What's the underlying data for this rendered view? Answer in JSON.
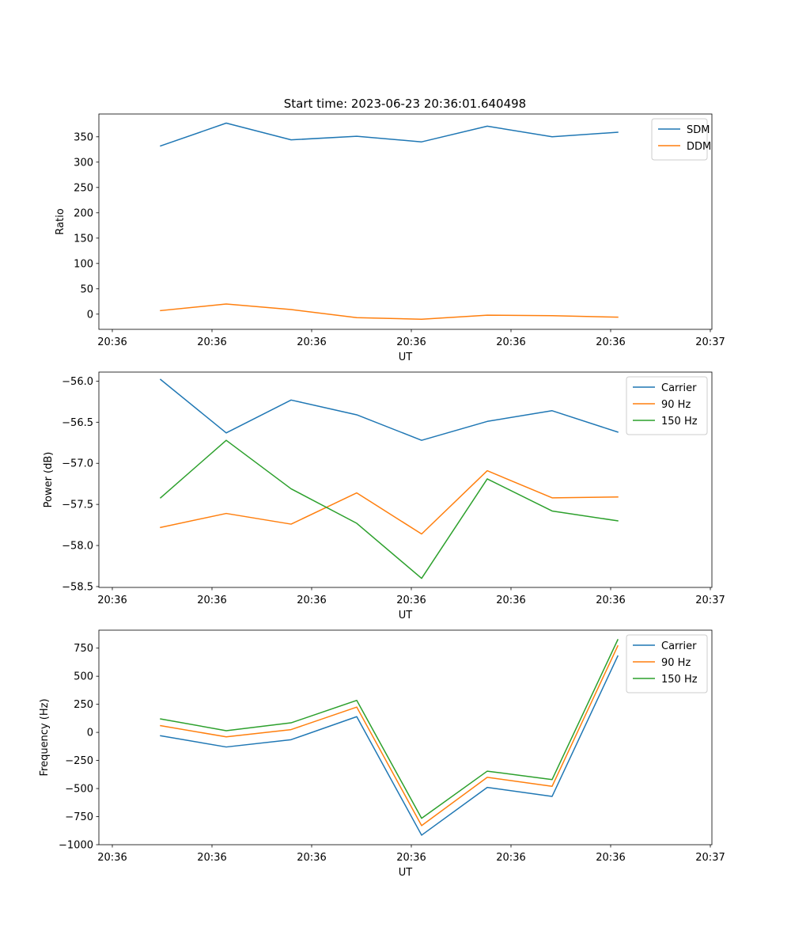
{
  "figure_title": "Start time: 2023-06-23 20:36:01.640498",
  "chart_data": [
    {
      "type": "line",
      "title": "Start time: 2023-06-23 20:36:01.640498",
      "xlabel": "UT",
      "ylabel": "Ratio",
      "x_tick_labels": [
        "20:36",
        "20:36",
        "20:36",
        "20:36",
        "20:36",
        "20:36",
        "20:37"
      ],
      "ylim": [
        -30,
        395
      ],
      "yticks": [
        0,
        50,
        100,
        150,
        200,
        250,
        300,
        350
      ],
      "legend_position": "upper-right",
      "series": [
        {
          "name": "SDM",
          "color": "#1f77b4",
          "values": [
            332,
            377,
            344,
            351,
            340,
            371,
            350,
            359
          ]
        },
        {
          "name": "DDM",
          "color": "#ff7f0e",
          "values": [
            7,
            20,
            9,
            -7,
            -10,
            -2,
            -3,
            -6
          ]
        }
      ]
    },
    {
      "type": "line",
      "xlabel": "UT",
      "ylabel": "Power (dB)",
      "x_tick_labels": [
        "20:36",
        "20:36",
        "20:36",
        "20:36",
        "20:36",
        "20:36",
        "20:37"
      ],
      "ylim": [
        -58.51,
        -55.89
      ],
      "yticks": [
        -58.5,
        -58.0,
        -57.5,
        -57.0,
        -56.5,
        -56.0
      ],
      "legend_position": "upper-right",
      "series": [
        {
          "name": "Carrier",
          "color": "#1f77b4",
          "values": [
            -55.98,
            -56.63,
            -56.23,
            -56.41,
            -56.72,
            -56.49,
            -56.36,
            -56.62
          ]
        },
        {
          "name": "90 Hz",
          "color": "#ff7f0e",
          "values": [
            -57.78,
            -57.61,
            -57.74,
            -57.36,
            -57.86,
            -57.09,
            -57.42,
            -57.41
          ]
        },
        {
          "name": "150 Hz",
          "color": "#2ca02c",
          "values": [
            -57.42,
            -56.72,
            -57.31,
            -57.73,
            -58.4,
            -57.19,
            -57.58,
            -57.7
          ]
        }
      ]
    },
    {
      "type": "line",
      "xlabel": "UT",
      "ylabel": "Frequency (Hz)",
      "x_tick_labels": [
        "20:36",
        "20:36",
        "20:36",
        "20:36",
        "20:36",
        "20:36",
        "20:37"
      ],
      "ylim": [
        -1000,
        910
      ],
      "yticks": [
        -1000,
        -750,
        -500,
        -250,
        0,
        250,
        500,
        750
      ],
      "legend_position": "upper-right",
      "series": [
        {
          "name": "Carrier",
          "color": "#1f77b4",
          "values": [
            -30,
            -130,
            -65,
            140,
            -915,
            -490,
            -570,
            680
          ]
        },
        {
          "name": "90 Hz",
          "color": "#ff7f0e",
          "values": [
            60,
            -40,
            25,
            225,
            -830,
            -400,
            -480,
            770
          ]
        },
        {
          "name": "150 Hz",
          "color": "#2ca02c",
          "values": [
            120,
            15,
            85,
            285,
            -765,
            -345,
            -420,
            825
          ]
        }
      ]
    }
  ]
}
